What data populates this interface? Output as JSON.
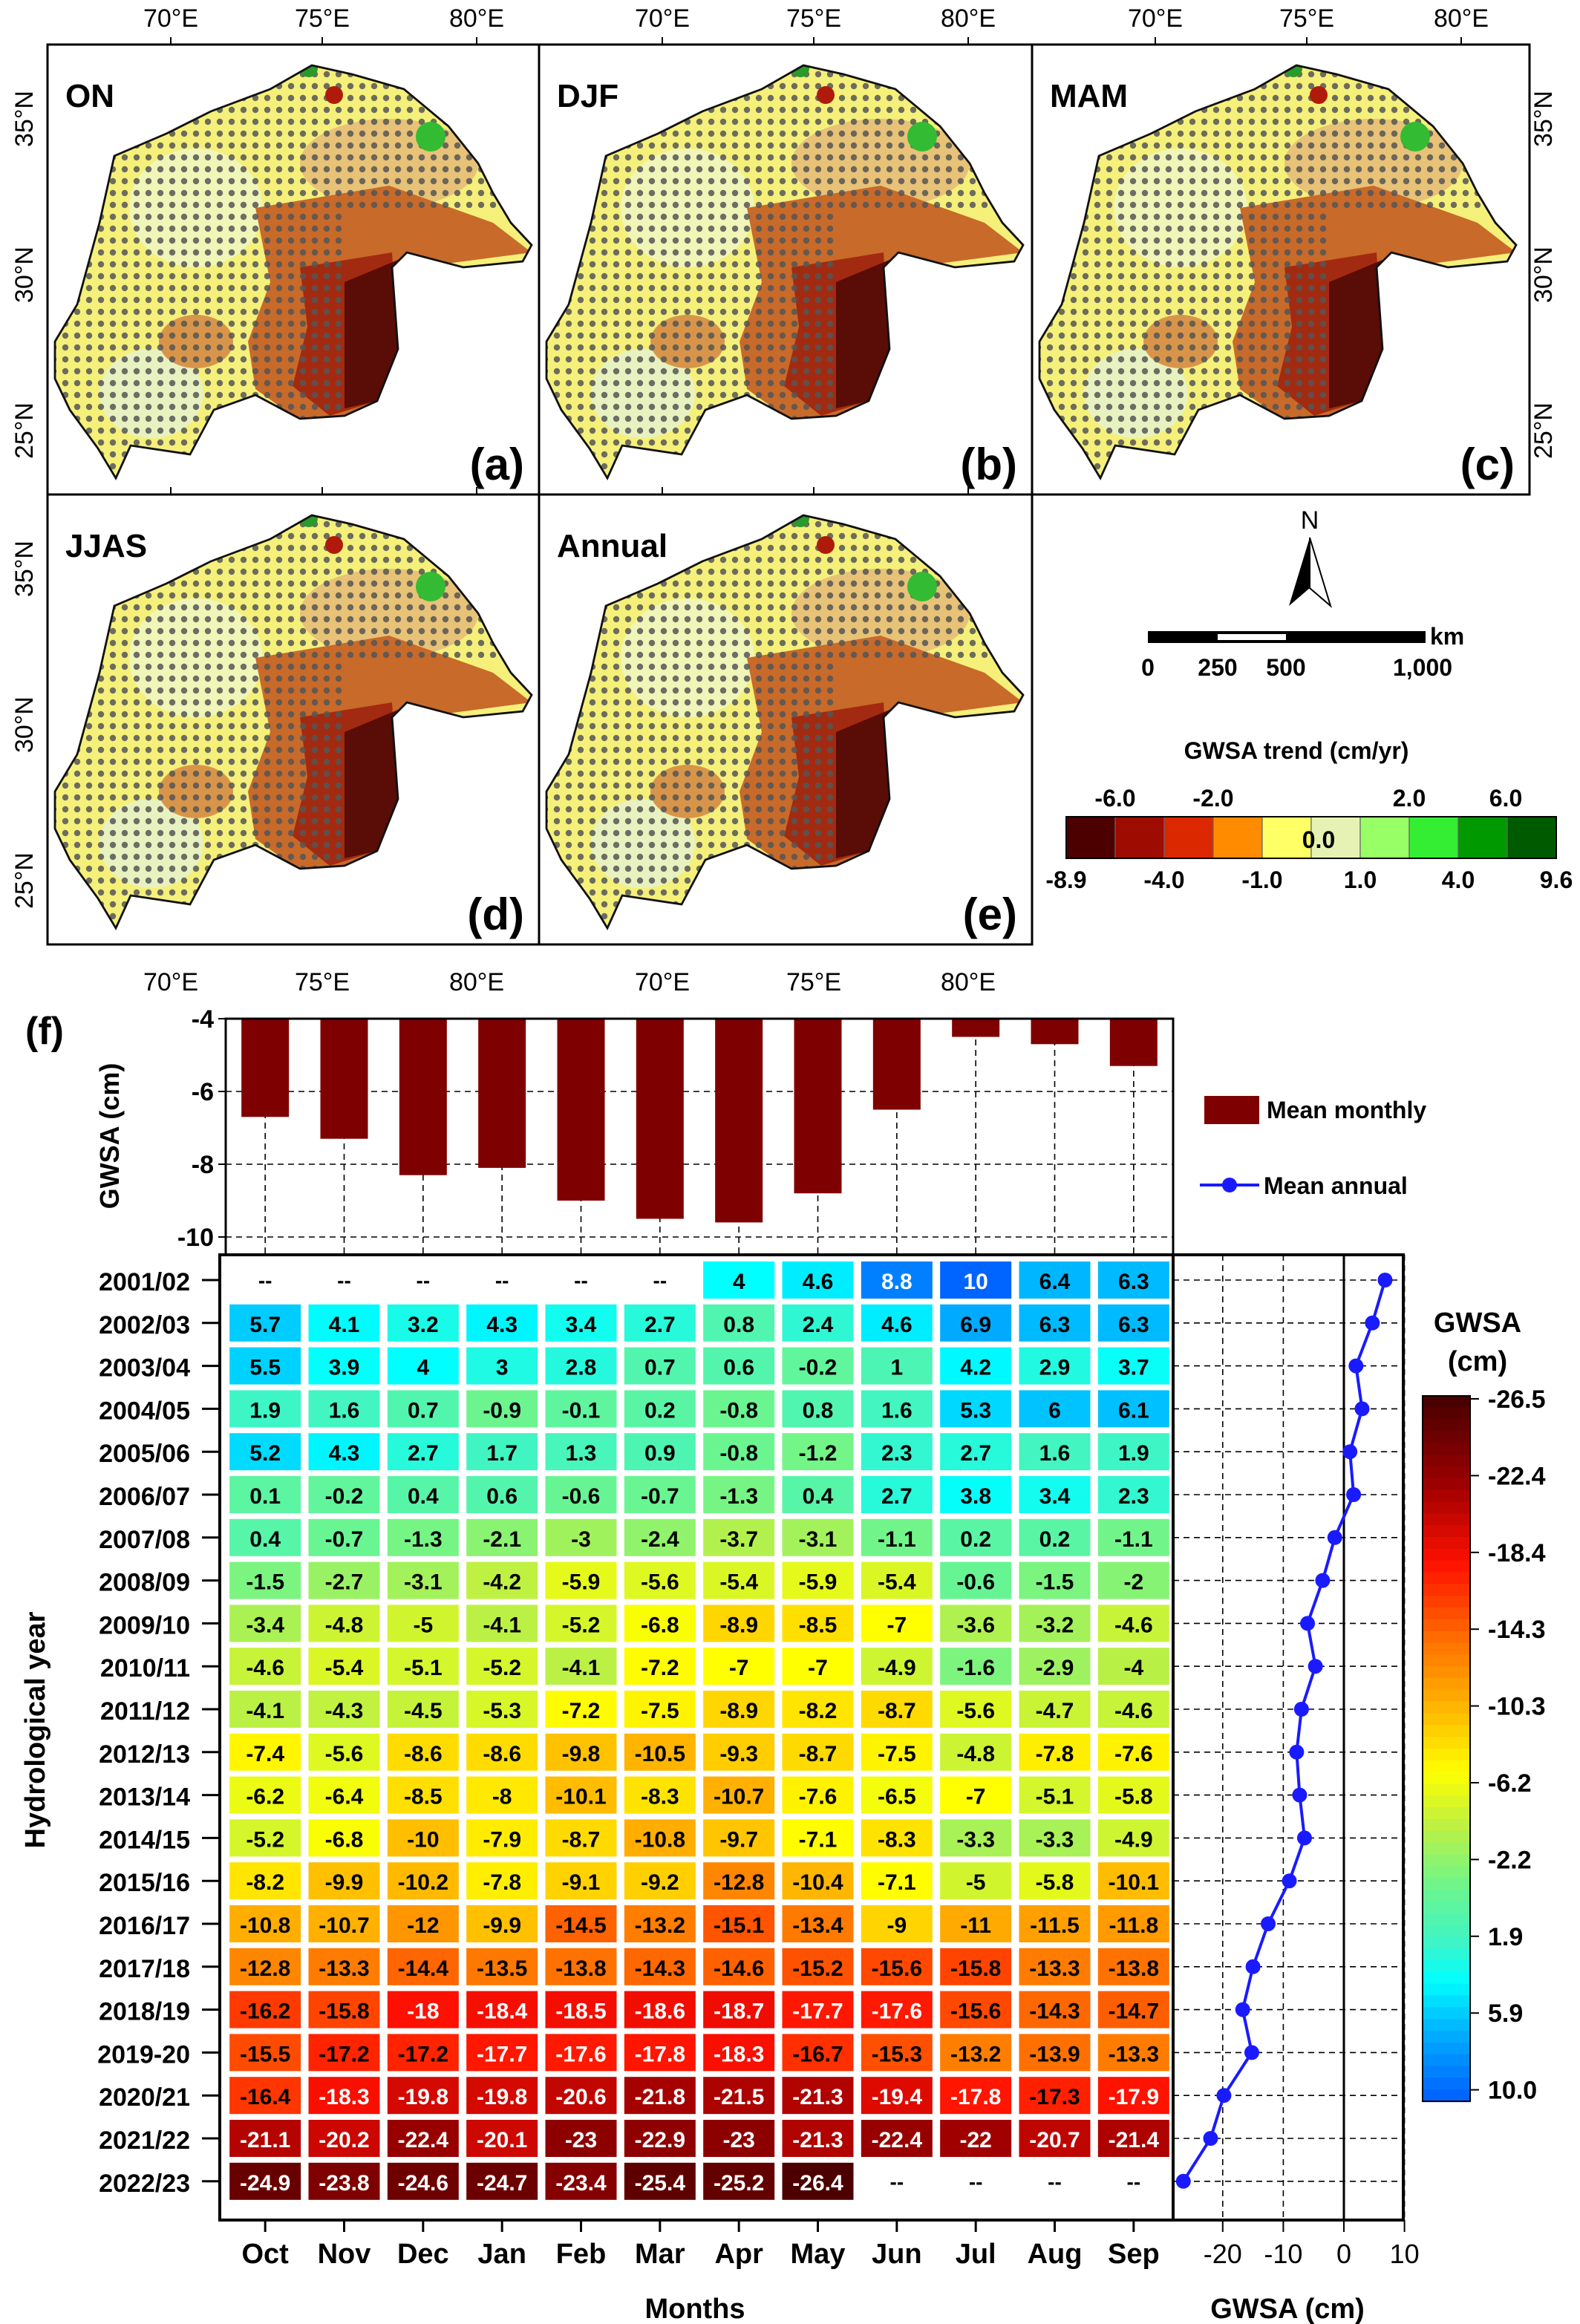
{
  "maps": {
    "panels": [
      {
        "season": "ON",
        "tag": "(a)"
      },
      {
        "season": "DJF",
        "tag": "(b)"
      },
      {
        "season": "MAM",
        "tag": "(c)"
      },
      {
        "season": "JJAS",
        "tag": "(d)"
      },
      {
        "season": "Annual",
        "tag": "(e)"
      }
    ],
    "lon_ticks": [
      "70°E",
      "75°E",
      "80°E"
    ],
    "lat_ticks": [
      "35°N",
      "30°N",
      "25°N"
    ],
    "north_label": "N",
    "scale_bar": {
      "unit": "km",
      "labels": [
        "0",
        "250",
        "500",
        "1,000"
      ]
    },
    "trend_legend": {
      "title": "GWSA trend (cm/yr)",
      "top_labels": [
        "-6.0",
        "-2.0",
        "2.0",
        "6.0"
      ],
      "bottom_labels": [
        "-8.9",
        "-4.0",
        "-1.0",
        "1.0",
        "4.0",
        "9.6"
      ],
      "center_label": "0.0",
      "colors": [
        "#4d0000",
        "#9e0b00",
        "#dc2800",
        "#ff8c00",
        "#ffff66",
        "#e6f2b3",
        "#99ff66",
        "#33ee33",
        "#009900",
        "#005a00"
      ]
    }
  },
  "panel_f_label": "(f)",
  "chart_data": [
    {
      "type": "bar",
      "categories": [
        "Oct",
        "Nov",
        "Dec",
        "Jan",
        "Feb",
        "Mar",
        "Apr",
        "May",
        "Jun",
        "Jul",
        "Aug",
        "Sep"
      ],
      "values": [
        -6.7,
        -7.3,
        -8.3,
        -8.1,
        -9.0,
        -9.5,
        -9.6,
        -8.8,
        -6.5,
        -4.5,
        -4.7,
        -5.3
      ],
      "ylabel": "GWSA (cm)",
      "ylim": [
        -10.5,
        -4
      ],
      "yticks": [
        "-4",
        "-6",
        "-8",
        "-10"
      ],
      "legend": "Mean monthly",
      "color": "#7f0000",
      "grid": true
    },
    {
      "type": "heatmap",
      "xlabel": "Months",
      "ylabel": "Hydrological year",
      "columns": [
        "Oct",
        "Nov",
        "Dec",
        "Jan",
        "Feb",
        "Mar",
        "Apr",
        "May",
        "Jun",
        "Jul",
        "Aug",
        "Sep"
      ],
      "rows": [
        "2001/02",
        "2002/03",
        "2003/04",
        "2004/05",
        "2005/06",
        "2006/07",
        "2007/08",
        "2008/09",
        "2009/10",
        "2010/11",
        "2011/12",
        "2012/13",
        "2013/14",
        "2014/15",
        "2015/16",
        "2016/17",
        "2017/18",
        "2018/19",
        "2019-20",
        "2020/21",
        "2021/22",
        "2022/23"
      ],
      "missing_label": "--",
      "values": [
        [
          null,
          null,
          null,
          null,
          null,
          null,
          4.0,
          4.6,
          8.8,
          10.0,
          6.4,
          6.3
        ],
        [
          5.7,
          4.1,
          3.2,
          4.3,
          3.4,
          2.7,
          0.8,
          2.4,
          4.6,
          6.9,
          6.3,
          6.3
        ],
        [
          5.5,
          3.9,
          4.0,
          3.0,
          2.8,
          0.7,
          0.6,
          -0.2,
          1.0,
          4.2,
          2.9,
          3.7
        ],
        [
          1.9,
          1.6,
          0.7,
          -0.9,
          -0.1,
          0.2,
          -0.8,
          0.8,
          1.6,
          5.3,
          6.0,
          6.1
        ],
        [
          5.2,
          4.3,
          2.7,
          1.7,
          1.3,
          0.9,
          -0.8,
          -1.2,
          2.3,
          2.7,
          1.6,
          1.9
        ],
        [
          0.1,
          -0.2,
          0.4,
          0.6,
          -0.6,
          -0.7,
          -1.3,
          0.4,
          2.7,
          3.8,
          3.4,
          2.3
        ],
        [
          0.4,
          -0.7,
          -1.3,
          -2.1,
          -3.0,
          -2.4,
          -3.7,
          -3.1,
          -1.1,
          0.2,
          0.2,
          -1.1
        ],
        [
          -1.5,
          -2.7,
          -3.1,
          -4.2,
          -5.9,
          -5.6,
          -5.4,
          -5.9,
          -5.4,
          -0.6,
          -1.5,
          -2.0
        ],
        [
          -3.4,
          -4.8,
          -5.0,
          -4.1,
          -5.2,
          -6.8,
          -8.9,
          -8.5,
          -7.0,
          -3.6,
          -3.2,
          -4.6
        ],
        [
          -4.6,
          -5.4,
          -5.1,
          -5.2,
          -4.1,
          -7.2,
          -7.0,
          -7.0,
          -4.9,
          -1.6,
          -2.9,
          -4.0
        ],
        [
          -4.1,
          -4.3,
          -4.5,
          -5.3,
          -7.2,
          -7.5,
          -8.9,
          -8.2,
          -8.7,
          -5.6,
          -4.7,
          -4.6
        ],
        [
          -7.4,
          -5.6,
          -8.6,
          -8.6,
          -9.8,
          -10.5,
          -9.3,
          -8.7,
          -7.5,
          -4.8,
          -7.8,
          -7.6
        ],
        [
          -6.2,
          -6.4,
          -8.5,
          -8.0,
          -10.1,
          -8.3,
          -10.7,
          -7.6,
          -6.5,
          -7.0,
          -5.1,
          -5.8
        ],
        [
          -5.2,
          -6.8,
          -10.0,
          -7.9,
          -8.7,
          -10.8,
          -9.7,
          -7.1,
          -8.3,
          -3.3,
          -3.3,
          -4.9
        ],
        [
          -8.2,
          -9.9,
          -10.2,
          -7.8,
          -9.1,
          -9.2,
          -12.8,
          -10.4,
          -7.1,
          -5.0,
          -5.8,
          -10.1
        ],
        [
          -10.8,
          -10.7,
          -12.0,
          -9.9,
          -14.5,
          -13.2,
          -15.1,
          -13.4,
          -9.0,
          -11.0,
          -11.5,
          -11.8
        ],
        [
          -12.8,
          -13.3,
          -14.4,
          -13.5,
          -13.8,
          -14.3,
          -14.6,
          -15.2,
          -15.6,
          -15.8,
          -13.3,
          -13.8
        ],
        [
          -16.2,
          -15.8,
          -18.0,
          -18.4,
          -18.5,
          -18.6,
          -18.7,
          -17.7,
          -17.6,
          -15.6,
          -14.3,
          -14.7
        ],
        [
          -15.5,
          -17.2,
          -17.2,
          -17.7,
          -17.6,
          -17.8,
          -18.3,
          -16.7,
          -15.3,
          -13.2,
          -13.9,
          -13.3
        ],
        [
          -16.4,
          -18.3,
          -19.8,
          -19.8,
          -20.6,
          -21.8,
          -21.5,
          -21.3,
          -19.4,
          -17.8,
          -17.3,
          -17.9
        ],
        [
          -21.1,
          -20.2,
          -22.4,
          -20.1,
          -23.0,
          -22.9,
          -23.0,
          -21.3,
          -22.4,
          -22.0,
          -20.7,
          -21.4
        ],
        [
          -24.9,
          -23.8,
          -24.6,
          -24.7,
          -23.4,
          -25.4,
          -25.2,
          -26.4,
          null,
          null,
          null,
          null
        ]
      ],
      "colorbar": {
        "title": [
          "GWSA",
          "(cm)"
        ],
        "ticks": [
          "-26.5",
          "-22.4",
          "-18.4",
          "-14.3",
          "-10.3",
          "-6.2",
          "-2.2",
          "1.9",
          "5.9",
          "10.0"
        ],
        "range": [
          -26.5,
          10.0
        ]
      }
    },
    {
      "type": "line",
      "xlabel": "GWSA (cm)",
      "xlim": [
        -27,
        10
      ],
      "xticks": [
        "-20",
        "-10",
        "0",
        "10"
      ],
      "legend": "Mean annual",
      "color": "#1a1aff",
      "values": [
        6.8,
        4.7,
        2.0,
        3.0,
        1.0,
        1.6,
        -1.5,
        -3.5,
        -6.0,
        -4.7,
        -7.0,
        -7.8,
        -7.3,
        -6.5,
        -9.0,
        -12.5,
        -15.0,
        -16.7,
        -15.2,
        -19.8,
        -22.0,
        -26.5
      ]
    }
  ]
}
